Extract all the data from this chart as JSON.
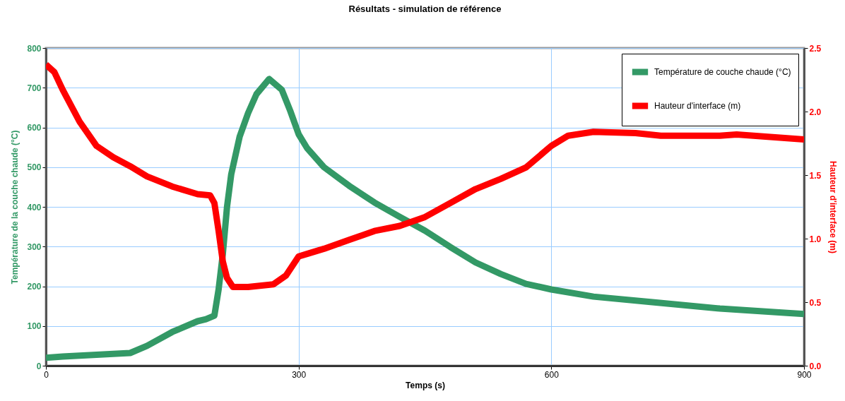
{
  "chart_data": {
    "type": "line",
    "title": "Résultats - simulation de référence",
    "xlabel": "Temps (s)",
    "ylabel": "Température de la couche chaude (°C)",
    "y2label": "Hauteur d'interface (m)",
    "xlim": [
      0,
      900
    ],
    "xticks": [
      0,
      300,
      600,
      900
    ],
    "ylim": [
      0,
      800
    ],
    "yticks": [
      0,
      100,
      200,
      300,
      400,
      500,
      600,
      700,
      800
    ],
    "y2lim": [
      0,
      2.5
    ],
    "y2ticks": [
      {
        "value": 0,
        "label": "0.0"
      },
      0.5,
      {
        "value": 1,
        "label": "1.0"
      },
      1.5,
      {
        "value": 2,
        "label": "2.0"
      },
      2.5
    ],
    "grid": true,
    "legend": "top right",
    "series": [
      {
        "name": "Température de couche chaude (°C)",
        "color": "#339966",
        "x": [
          0,
          20,
          100,
          120,
          150,
          180,
          190,
          200,
          205,
          210,
          215,
          220,
          230,
          240,
          250,
          265,
          280,
          290,
          300,
          310,
          330,
          360,
          390,
          420,
          450,
          480,
          510,
          540,
          570,
          600,
          650,
          720,
          800,
          880,
          900
        ],
        "values": [
          20,
          23,
          32,
          50,
          85,
          112,
          117,
          126,
          192,
          281,
          400,
          482,
          577,
          636,
          684,
          722,
          695,
          642,
          583,
          548,
          500,
          453,
          411,
          375,
          340,
          299,
          260,
          231,
          206,
          192,
          174,
          160,
          144,
          133,
          130
        ]
      },
      {
        "name": "Hauteur d'interface (m)",
        "color": "#ff0000",
        "axis": "y2",
        "x": [
          0,
          10,
          20,
          40,
          60,
          80,
          100,
          120,
          150,
          180,
          195,
          200,
          205,
          210,
          215,
          222,
          240,
          270,
          285,
          300,
          310,
          330,
          360,
          390,
          420,
          450,
          480,
          510,
          540,
          570,
          600,
          620,
          650,
          700,
          730,
          800,
          820,
          880,
          900
        ],
        "values": [
          2.37,
          2.31,
          2.17,
          1.92,
          1.73,
          1.64,
          1.57,
          1.49,
          1.41,
          1.35,
          1.34,
          1.28,
          1.06,
          0.82,
          0.69,
          0.62,
          0.62,
          0.64,
          0.71,
          0.86,
          0.88,
          0.92,
          0.99,
          1.06,
          1.1,
          1.17,
          1.28,
          1.39,
          1.47,
          1.56,
          1.73,
          1.81,
          1.84,
          1.83,
          1.81,
          1.81,
          1.82,
          1.79,
          1.78
        ]
      }
    ]
  }
}
